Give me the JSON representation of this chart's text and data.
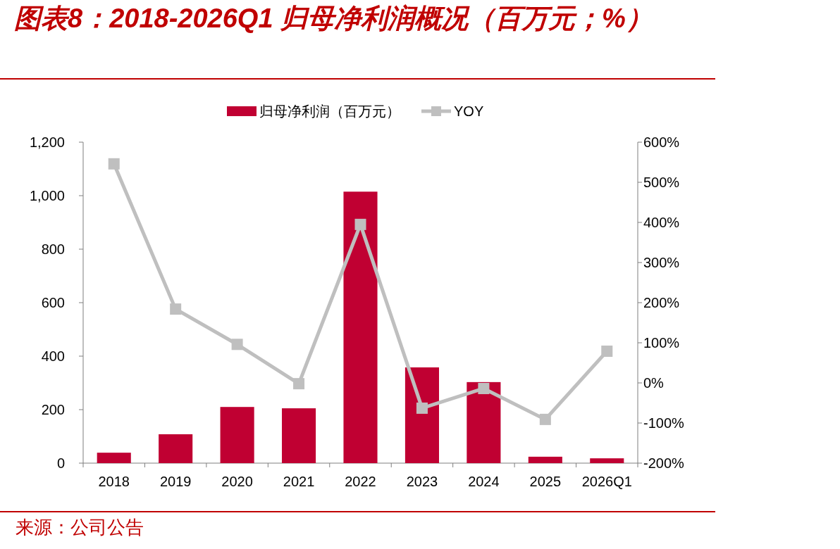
{
  "chart_data": {
    "type": "bar",
    "title": "图表8：2018-2026Q1 归母净利润概况（百万元；%）",
    "categories": [
      "2018",
      "2019",
      "2020",
      "2021",
      "2022",
      "2023",
      "2024",
      "2025",
      "2026Q1"
    ],
    "series": [
      {
        "name": "归母净利润（百万元）",
        "color": "#c00032",
        "values": [
          39,
          108,
          210,
          205,
          1015,
          358,
          303,
          24,
          18
        ]
      },
      {
        "name": "YOY",
        "type": "line",
        "axis": "y2",
        "color": "#bfbfbf",
        "marker": "square",
        "values": [
          546,
          184,
          96,
          -2,
          395,
          -63,
          -14,
          -91,
          79
        ]
      }
    ],
    "ylim": [
      0,
      1200
    ],
    "yticks": [
      0,
      {
        "value": 200,
        "label": "200"
      },
      {
        "value": 400,
        "label": "400"
      },
      {
        "value": 600,
        "label": "600"
      },
      {
        "value": 800,
        "label": "800"
      },
      {
        "value": 1000,
        "label": "1,000"
      },
      {
        "value": 1200,
        "label": "1,200"
      }
    ],
    "y2lim": [
      -200,
      600
    ],
    "y2ticks": [
      {
        "value": -200,
        "label": "-200%"
      },
      {
        "value": -100,
        "label": "-100%"
      },
      {
        "value": 0,
        "label": "0%"
      },
      {
        "value": 100,
        "label": "100%"
      },
      {
        "value": 200,
        "label": "200%"
      },
      {
        "value": 300,
        "label": "300%"
      },
      {
        "value": 400,
        "label": "400%"
      },
      {
        "value": 500,
        "label": "500%"
      },
      {
        "value": 600,
        "label": "600%"
      }
    ],
    "legend": "top",
    "grid": false,
    "annotations": [
      "来源：公司公告"
    ]
  }
}
